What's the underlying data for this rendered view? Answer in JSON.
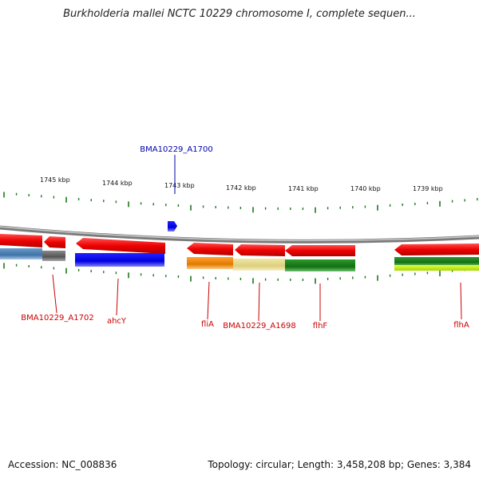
{
  "title": "Burkholderia mallei NCTC 10229 chromosome I, complete sequen...",
  "accession_text": "Accession: NC_008836",
  "summary_text": "Topology: circular; Length: 3,458,208 bp; Genes: 3,384",
  "ruler": {
    "labels": [
      "1745 kbp",
      "1744 kbp",
      "1743 kbp",
      "1742 kbp",
      "1741 kbp",
      "1740 kbp",
      "1739 kbp"
    ],
    "tick_color": "#1a7a1a"
  },
  "backbone_color": "#8a8a8a",
  "genes": [
    {
      "label": "BMA10229_A1702",
      "color": "#cc0000"
    },
    {
      "label": "ahcY",
      "color": "#cc0000"
    },
    {
      "label": "BMA10229_A1700",
      "color": "#0000aa"
    },
    {
      "label": "fliA",
      "color": "#cc0000"
    },
    {
      "label": "BMA10229_A1698",
      "color": "#cc0000"
    },
    {
      "label": "flhF",
      "color": "#cc0000"
    },
    {
      "label": "flhA",
      "color": "#cc0000"
    }
  ],
  "feature_colors": {
    "gene_arrow": "#ee1111",
    "blue_feature": "#0000ee",
    "steel_feature": "#4a7fb0",
    "gray_feature": "#666666",
    "orange_feature": "#f08a00",
    "khaki_feature": "#e6d98a",
    "green_feature": "#1a7f1a",
    "lime_feature": "#c8f000"
  }
}
